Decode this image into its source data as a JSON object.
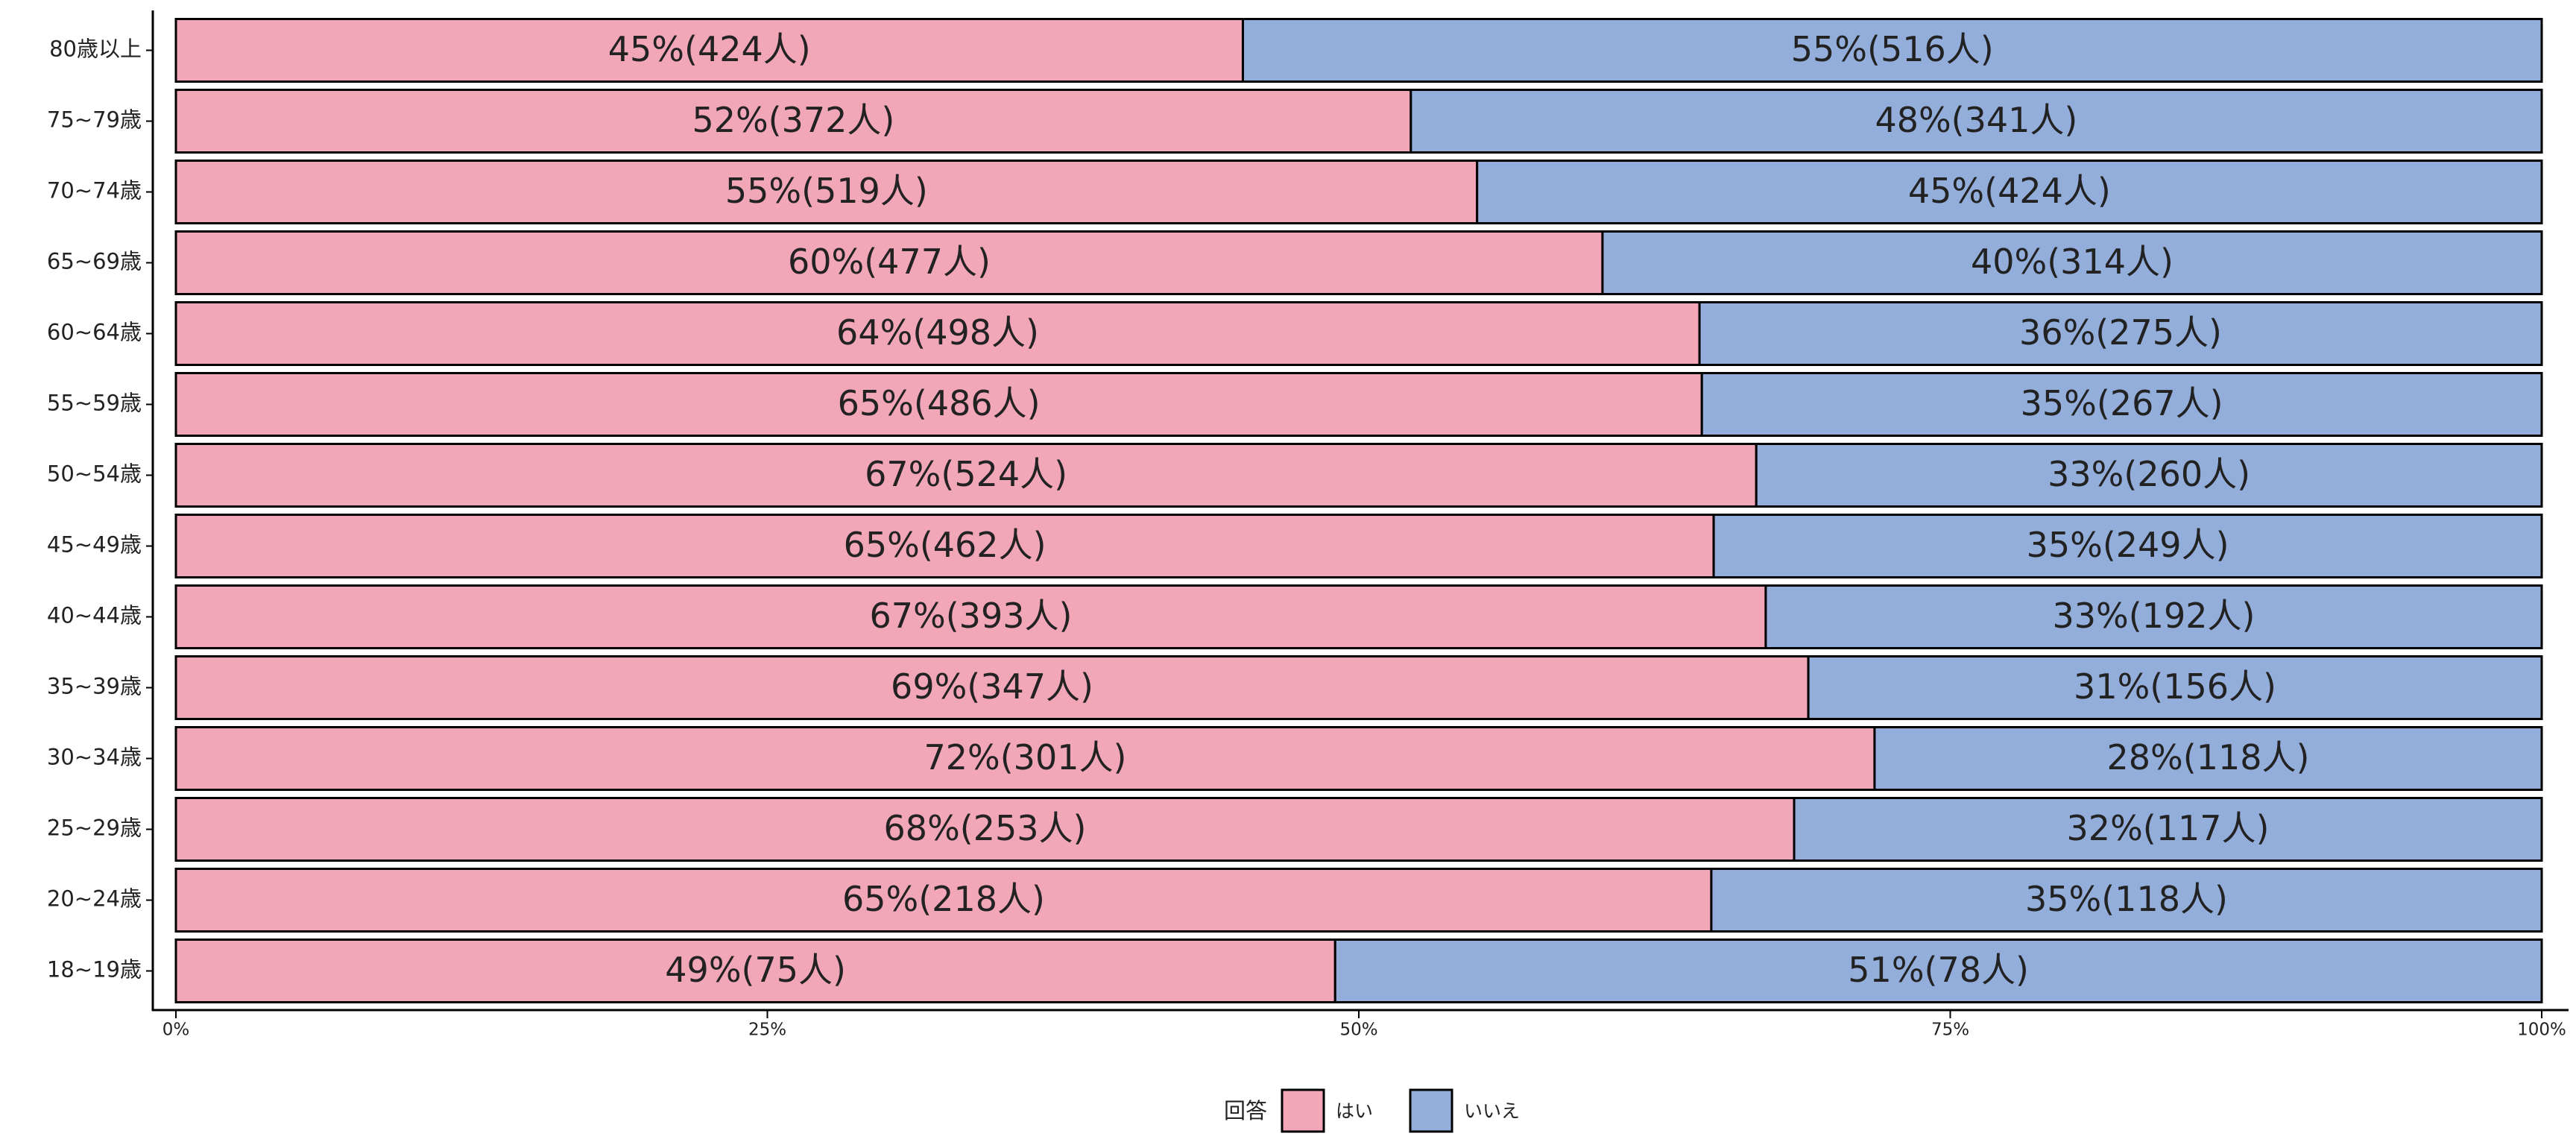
{
  "chart_data": {
    "type": "stacked-bar-horizontal",
    "categories": [
      "80歳以上",
      "75~79歳",
      "70~74歳",
      "65~69歳",
      "60~64歳",
      "55~59歳",
      "50~54歳",
      "45~49歳",
      "40~44歳",
      "35~39歳",
      "30~34歳",
      "25~29歳",
      "20~24歳",
      "18~19歳"
    ],
    "series": [
      {
        "name": "はい",
        "color": "#f2a7b8",
        "values": [
          45.1,
          52.2,
          55.0,
          60.3,
          64.4,
          64.5,
          66.8,
          65.0,
          67.2,
          69.0,
          71.8,
          68.4,
          64.9,
          49.0
        ],
        "value_labels": [
          "45%(424人)",
          "52%(372人)",
          "55%(519人)",
          "60%(477人)",
          "64%(498人)",
          "65%(486人)",
          "67%(524人)",
          "65%(462人)",
          "67%(393人)",
          "69%(347人)",
          "72%(301人)",
          "68%(253人)",
          "65%(218人)",
          "49%(75人)"
        ]
      },
      {
        "name": "いいえ",
        "color": "#94aedb",
        "values": [
          54.9,
          47.8,
          45.0,
          39.7,
          35.6,
          35.5,
          33.2,
          35.0,
          32.8,
          31.0,
          28.2,
          31.6,
          35.1,
          51.0
        ],
        "value_labels": [
          "55%(516人)",
          "48%(341人)",
          "45%(424人)",
          "40%(314人)",
          "36%(275人)",
          "35%(267人)",
          "33%(260人)",
          "35%(249人)",
          "33%(192人)",
          "31%(156人)",
          "28%(118人)",
          "32%(117人)",
          "35%(118人)",
          "51%(78人)"
        ]
      }
    ],
    "xlim": [
      0,
      100
    ],
    "xticks": [
      {
        "value": 0,
        "label": "0%"
      },
      {
        "value": 25,
        "label": "25%"
      },
      {
        "value": 50,
        "label": "50%"
      },
      {
        "value": 75,
        "label": "75%"
      },
      {
        "value": 100,
        "label": "100%"
      }
    ],
    "legend_title": "回答",
    "legend_position": "bottom"
  }
}
